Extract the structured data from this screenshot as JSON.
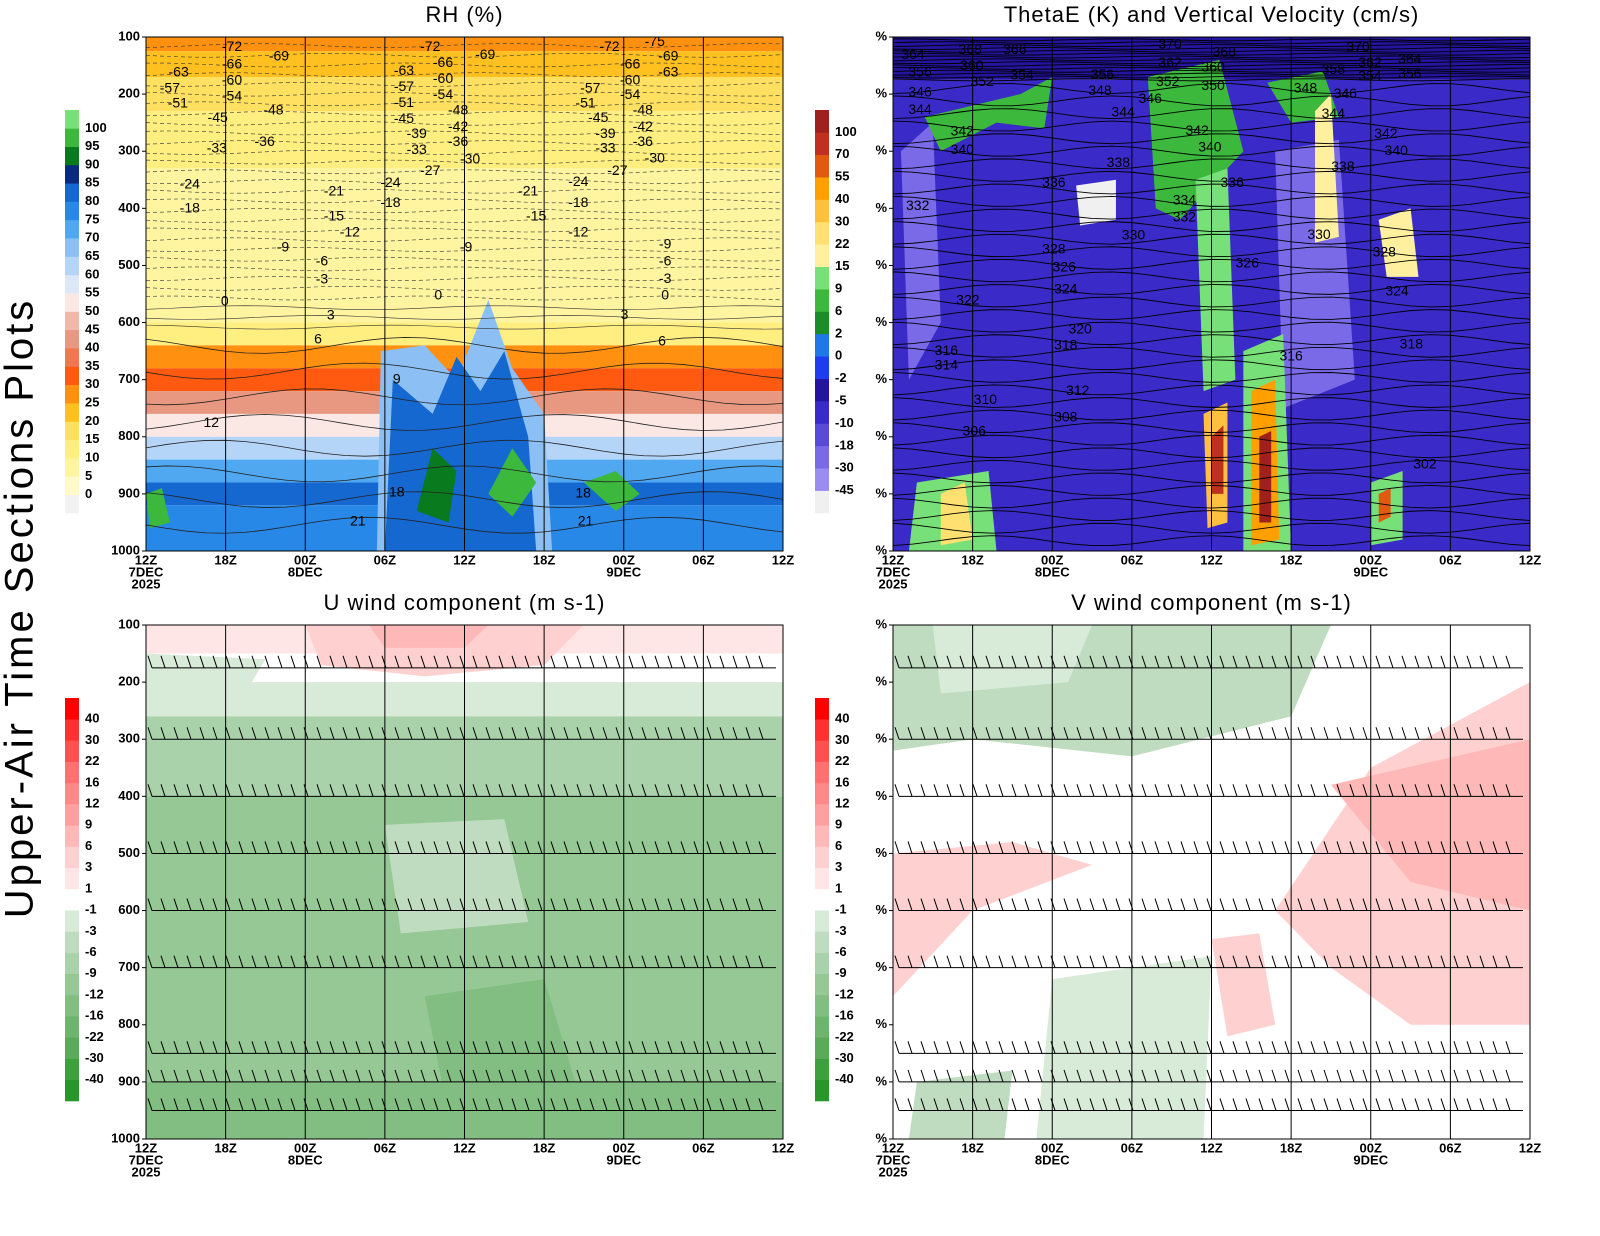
{
  "side_title": "Upper-Air Time Sections Plots",
  "chart_data": [
    {
      "type": "contour",
      "title": "RH (%)",
      "categories": [
        "12Z",
        "18Z",
        "00Z",
        "06Z",
        "12Z",
        "18Z",
        "00Z",
        "06Z",
        "12Z"
      ],
      "date_labels": [
        "7DEC",
        null,
        "8DEC",
        null,
        null,
        null,
        "9DEC",
        null,
        null
      ],
      "year": "2025",
      "ylim": [
        1000,
        100
      ],
      "yticks": [
        100,
        200,
        300,
        400,
        500,
        600,
        700,
        800,
        900,
        1000
      ],
      "colorbar": {
        "levels": [
          0,
          5,
          10,
          15,
          20,
          25,
          30,
          35,
          40,
          45,
          50,
          55,
          60,
          65,
          70,
          75,
          80,
          85,
          90,
          95,
          100
        ],
        "colors": [
          "#f2f2f2",
          "#fffac8",
          "#fff5a0",
          "#ffee80",
          "#ffe060",
          "#ffc020",
          "#ff9010",
          "#ff5a10",
          "#f07850",
          "#e89880",
          "#f0b8a8",
          "#fbe8e4",
          "#dce8f8",
          "#b4d4f8",
          "#8cc0f4",
          "#50a8f0",
          "#2888e8",
          "#1468d0",
          "#0a2a80",
          "#0a7a1e",
          "#3cb83c",
          "#78e078"
        ]
      },
      "contour_labels": [
        {
          "x": 1.08,
          "p": 118,
          "value": -72
        },
        {
          "x": 1.67,
          "p": 135,
          "value": -69
        },
        {
          "x": 0.41,
          "p": 163,
          "value": -63
        },
        {
          "x": 0.3,
          "p": 191,
          "value": -57
        },
        {
          "x": 0.4,
          "p": 217,
          "value": -51
        },
        {
          "x": 1.08,
          "p": 149,
          "value": -66
        },
        {
          "x": 1.08,
          "p": 177,
          "value": -60
        },
        {
          "x": 1.08,
          "p": 205,
          "value": -54
        },
        {
          "x": 1.6,
          "p": 229,
          "value": -48
        },
        {
          "x": 0.9,
          "p": 242,
          "value": -45
        },
        {
          "x": 1.49,
          "p": 284,
          "value": -36
        },
        {
          "x": 0.89,
          "p": 296,
          "value": -33
        },
        {
          "x": 0.55,
          "p": 359,
          "value": -24
        },
        {
          "x": 0.55,
          "p": 401,
          "value": -18
        },
        {
          "x": 2.36,
          "p": 371,
          "value": -21
        },
        {
          "x": 3.07,
          "p": 356,
          "value": -24
        },
        {
          "x": 3.07,
          "p": 391,
          "value": -18
        },
        {
          "x": 2.36,
          "p": 415,
          "value": -15
        },
        {
          "x": 2.56,
          "p": 443,
          "value": -12
        },
        {
          "x": 1.72,
          "p": 469,
          "value": -9
        },
        {
          "x": 2.21,
          "p": 494,
          "value": -6
        },
        {
          "x": 2.21,
          "p": 525,
          "value": -3
        },
        {
          "x": 0.99,
          "p": 564,
          "value": 0
        },
        {
          "x": 2.32,
          "p": 588,
          "value": 3
        },
        {
          "x": 2.16,
          "p": 630,
          "value": 6
        },
        {
          "x": 3.15,
          "p": 700,
          "value": 9
        },
        {
          "x": 0.82,
          "p": 776,
          "value": 12
        },
        {
          "x": 3.15,
          "p": 898,
          "value": 18
        },
        {
          "x": 2.66,
          "p": 949,
          "value": 21
        },
        {
          "x": 3.57,
          "p": 118,
          "value": -72
        },
        {
          "x": 4.26,
          "p": 132,
          "value": -69
        },
        {
          "x": 3.24,
          "p": 160,
          "value": -63
        },
        {
          "x": 3.73,
          "p": 146,
          "value": -66
        },
        {
          "x": 3.73,
          "p": 174,
          "value": -60
        },
        {
          "x": 3.24,
          "p": 188,
          "value": -57
        },
        {
          "x": 3.73,
          "p": 202,
          "value": -54
        },
        {
          "x": 3.24,
          "p": 216,
          "value": -51
        },
        {
          "x": 3.92,
          "p": 229,
          "value": -48
        },
        {
          "x": 3.24,
          "p": 244,
          "value": -45
        },
        {
          "x": 3.92,
          "p": 258,
          "value": -42
        },
        {
          "x": 3.4,
          "p": 270,
          "value": -39
        },
        {
          "x": 3.92,
          "p": 284,
          "value": -36
        },
        {
          "x": 3.4,
          "p": 298,
          "value": -33
        },
        {
          "x": 4.07,
          "p": 315,
          "value": -30
        },
        {
          "x": 3.57,
          "p": 335,
          "value": -27
        },
        {
          "x": 4.8,
          "p": 371,
          "value": -21
        },
        {
          "x": 5.43,
          "p": 354,
          "value": -24
        },
        {
          "x": 5.43,
          "p": 391,
          "value": -18
        },
        {
          "x": 4.9,
          "p": 415,
          "value": -15
        },
        {
          "x": 5.43,
          "p": 443,
          "value": -12
        },
        {
          "x": 4.02,
          "p": 469,
          "value": -9
        },
        {
          "x": 3.67,
          "p": 553,
          "value": 0
        },
        {
          "x": 5.49,
          "p": 900,
          "value": 18
        },
        {
          "x": 5.52,
          "p": 949,
          "value": 21
        },
        {
          "x": 5.82,
          "p": 118,
          "value": -72
        },
        {
          "x": 6.39,
          "p": 109,
          "value": -75
        },
        {
          "x": 6.56,
          "p": 135,
          "value": -69
        },
        {
          "x": 6.08,
          "p": 149,
          "value": -66
        },
        {
          "x": 6.56,
          "p": 163,
          "value": -63
        },
        {
          "x": 6.08,
          "p": 177,
          "value": -60
        },
        {
          "x": 5.58,
          "p": 191,
          "value": -57
        },
        {
          "x": 6.08,
          "p": 202,
          "value": -54
        },
        {
          "x": 5.52,
          "p": 217,
          "value": -51
        },
        {
          "x": 6.24,
          "p": 229,
          "value": -48
        },
        {
          "x": 5.68,
          "p": 242,
          "value": -45
        },
        {
          "x": 6.24,
          "p": 258,
          "value": -42
        },
        {
          "x": 5.77,
          "p": 270,
          "value": -39
        },
        {
          "x": 6.24,
          "p": 284,
          "value": -36
        },
        {
          "x": 5.77,
          "p": 296,
          "value": -33
        },
        {
          "x": 6.39,
          "p": 313,
          "value": -30
        },
        {
          "x": 5.92,
          "p": 335,
          "value": -27
        },
        {
          "x": 6.52,
          "p": 464,
          "value": -9
        },
        {
          "x": 6.52,
          "p": 494,
          "value": -6
        },
        {
          "x": 6.52,
          "p": 524,
          "value": -3
        },
        {
          "x": 6.52,
          "p": 553,
          "value": 0
        },
        {
          "x": 6.01,
          "p": 587,
          "value": 3
        },
        {
          "x": 6.48,
          "p": 634,
          "value": 6
        }
      ]
    },
    {
      "type": "contour",
      "title": "ThetaE (K) and Vertical Velocity (cm/s)",
      "categories": [
        "12Z",
        "18Z",
        "00Z",
        "06Z",
        "12Z",
        "18Z",
        "00Z",
        "06Z",
        "12Z"
      ],
      "date_labels": [
        "7DEC",
        null,
        "8DEC",
        null,
        null,
        null,
        "9DEC",
        null,
        null
      ],
      "year": "2025",
      "ylim": [
        1000,
        100
      ],
      "yticks": [
        {
          "value": 100,
          "label": "%"
        },
        {
          "value": 200,
          "label": "%"
        },
        {
          "value": 300,
          "label": "%"
        },
        {
          "value": 400,
          "label": "%"
        },
        {
          "value": 500,
          "label": "%"
        },
        {
          "value": 600,
          "label": "%"
        },
        {
          "value": 700,
          "label": "%"
        },
        {
          "value": 800,
          "label": "%"
        },
        {
          "value": 900,
          "label": "%"
        },
        {
          "value": 1000,
          "label": "%"
        }
      ],
      "colorbar": {
        "levels": [
          -45,
          -30,
          -18,
          -10,
          -5,
          -2,
          0,
          2,
          6,
          9,
          15,
          22,
          30,
          40,
          55,
          70,
          100
        ],
        "colors": [
          "#f0f0f0",
          "#9a8cf0",
          "#7a6ae8",
          "#5a4ad8",
          "#3a2ac8",
          "#24149e",
          "#1e3cf0",
          "#1e78e8",
          "#1a8c28",
          "#3cb83c",
          "#78e078",
          "#fff0a0",
          "#ffe070",
          "#ffc040",
          "#ffa000",
          "#e05a10",
          "#c03020",
          "#a02020"
        ]
      },
      "contour_labels": [
        {
          "x": 0.25,
          "p": 132,
          "value": 364
        },
        {
          "x": 0.34,
          "p": 163,
          "value": 356
        },
        {
          "x": 0.34,
          "p": 198,
          "value": 346
        },
        {
          "x": 0.34,
          "p": 228,
          "value": 344
        },
        {
          "x": 0.87,
          "p": 266,
          "value": 342
        },
        {
          "x": 0.87,
          "p": 298,
          "value": 340
        },
        {
          "x": 0.31,
          "p": 396,
          "value": 332
        },
        {
          "x": 0.94,
          "p": 562,
          "value": 322
        },
        {
          "x": 0.67,
          "p": 650,
          "value": 316
        },
        {
          "x": 0.67,
          "p": 676,
          "value": 314
        },
        {
          "x": 1.16,
          "p": 736,
          "value": 310
        },
        {
          "x": 1.02,
          "p": 791,
          "value": 306
        },
        {
          "x": 2.02,
          "p": 473,
          "value": 328
        },
        {
          "x": 2.15,
          "p": 504,
          "value": 326
        },
        {
          "x": 2.17,
          "p": 543,
          "value": 324
        },
        {
          "x": 2.35,
          "p": 613,
          "value": 320
        },
        {
          "x": 2.17,
          "p": 641,
          "value": 318
        },
        {
          "x": 2.32,
          "p": 720,
          "value": 312
        },
        {
          "x": 2.17,
          "p": 767,
          "value": 308
        },
        {
          "x": 2.02,
          "p": 356,
          "value": 336
        },
        {
          "x": 2.83,
          "p": 321,
          "value": 338
        },
        {
          "x": 3.02,
          "p": 448,
          "value": 330
        },
        {
          "x": 0.97,
          "p": 123,
          "value": 368
        },
        {
          "x": 1.53,
          "p": 123,
          "value": 366
        },
        {
          "x": 0.99,
          "p": 151,
          "value": 360
        },
        {
          "x": 1.12,
          "p": 179,
          "value": 352
        },
        {
          "x": 1.62,
          "p": 168,
          "value": 354
        },
        {
          "x": 2.63,
          "p": 167,
          "value": 356
        },
        {
          "x": 2.6,
          "p": 195,
          "value": 348
        },
        {
          "x": 2.89,
          "p": 233,
          "value": 344
        },
        {
          "x": 3.48,
          "p": 114,
          "value": 370
        },
        {
          "x": 3.48,
          "p": 146,
          "value": 362
        },
        {
          "x": 4.16,
          "p": 128,
          "value": 368
        },
        {
          "x": 4.02,
          "p": 154,
          "value": 360
        },
        {
          "x": 3.45,
          "p": 179,
          "value": 352
        },
        {
          "x": 4.02,
          "p": 186,
          "value": 350
        },
        {
          "x": 3.23,
          "p": 209,
          "value": 346
        },
        {
          "x": 3.82,
          "p": 265,
          "value": 342
        },
        {
          "x": 3.98,
          "p": 294,
          "value": 340
        },
        {
          "x": 4.26,
          "p": 356,
          "value": 336
        },
        {
          "x": 3.66,
          "p": 387,
          "value": 334
        },
        {
          "x": 3.66,
          "p": 417,
          "value": 332
        },
        {
          "x": 4.45,
          "p": 497,
          "value": 326
        },
        {
          "x": 5.18,
          "p": 191,
          "value": 348
        },
        {
          "x": 5.53,
          "p": 235,
          "value": 344
        },
        {
          "x": 5.68,
          "p": 200,
          "value": 346
        },
        {
          "x": 5.84,
          "p": 119,
          "value": 370
        },
        {
          "x": 5.53,
          "p": 158,
          "value": 358
        },
        {
          "x": 5.99,
          "p": 146,
          "value": 362
        },
        {
          "x": 6.49,
          "p": 140,
          "value": 364
        },
        {
          "x": 5.99,
          "p": 170,
          "value": 354
        },
        {
          "x": 6.49,
          "p": 165,
          "value": 356
        },
        {
          "x": 6.19,
          "p": 270,
          "value": 342
        },
        {
          "x": 6.32,
          "p": 300,
          "value": 340
        },
        {
          "x": 5.65,
          "p": 328,
          "value": 338
        },
        {
          "x": 5.35,
          "p": 447,
          "value": 330
        },
        {
          "x": 6.17,
          "p": 478,
          "value": 328
        },
        {
          "x": 6.33,
          "p": 546,
          "value": 324
        },
        {
          "x": 6.51,
          "p": 639,
          "value": 318
        },
        {
          "x": 5.0,
          "p": 660,
          "value": 316
        },
        {
          "x": 6.68,
          "p": 849,
          "value": 302
        }
      ]
    },
    {
      "type": "contour",
      "title": "U wind component (m s-1)",
      "categories": [
        "12Z",
        "18Z",
        "00Z",
        "06Z",
        "12Z",
        "18Z",
        "00Z",
        "06Z",
        "12Z"
      ],
      "date_labels": [
        "7DEC",
        null,
        "8DEC",
        null,
        null,
        null,
        "9DEC",
        null,
        null
      ],
      "year": "2025",
      "ylim": [
        1000,
        100
      ],
      "yticks": [
        100,
        200,
        300,
        400,
        500,
        600,
        700,
        800,
        900,
        1000
      ],
      "colorbar": {
        "levels": [
          -40,
          -30,
          -22,
          -16,
          -12,
          -9,
          -6,
          -3,
          -1,
          1,
          3,
          6,
          9,
          12,
          16,
          22,
          30,
          40
        ],
        "colors": [
          "#289628",
          "#3ca03c",
          "#5aaa5a",
          "#6eb46e",
          "#82be82",
          "#96c896",
          "#aad2aa",
          "#c0dcc0",
          "#d8ead8",
          "#ffffff",
          "#ffe6e6",
          "#ffd0d0",
          "#ffb8b8",
          "#ffa0a0",
          "#ff8888",
          "#ff7070",
          "#ff5050",
          "#ff3030",
          "#ff0000"
        ]
      },
      "contour_labels": []
    },
    {
      "type": "contour",
      "title": "V wind component (m s-1)",
      "categories": [
        "12Z",
        "18Z",
        "00Z",
        "06Z",
        "12Z",
        "18Z",
        "00Z",
        "06Z",
        "12Z"
      ],
      "date_labels": [
        "7DEC",
        null,
        "8DEC",
        null,
        null,
        null,
        "9DEC",
        null,
        null
      ],
      "year": "2025",
      "ylim": [
        1000,
        100
      ],
      "yticks": [
        {
          "value": 100,
          "label": "%"
        },
        {
          "value": 200,
          "label": "%"
        },
        {
          "value": 300,
          "label": "%"
        },
        {
          "value": 400,
          "label": "%"
        },
        {
          "value": 500,
          "label": "%"
        },
        {
          "value": 600,
          "label": "%"
        },
        {
          "value": 700,
          "label": "%"
        },
        {
          "value": 800,
          "label": "%"
        },
        {
          "value": 900,
          "label": "%"
        },
        {
          "value": 1000,
          "label": "%"
        }
      ],
      "colorbar": {
        "levels": [
          -40,
          -30,
          -22,
          -16,
          -12,
          -9,
          -6,
          -3,
          -1,
          1,
          3,
          6,
          9,
          12,
          16,
          22,
          30,
          40
        ],
        "colors": [
          "#289628",
          "#3ca03c",
          "#5aaa5a",
          "#6eb46e",
          "#82be82",
          "#96c896",
          "#aad2aa",
          "#c0dcc0",
          "#d8ead8",
          "#ffffff",
          "#ffe6e6",
          "#ffd0d0",
          "#ffb8b8",
          "#ffa0a0",
          "#ff8888",
          "#ff7070",
          "#ff5050",
          "#ff3030",
          "#ff0000"
        ]
      },
      "contour_labels": []
    }
  ]
}
